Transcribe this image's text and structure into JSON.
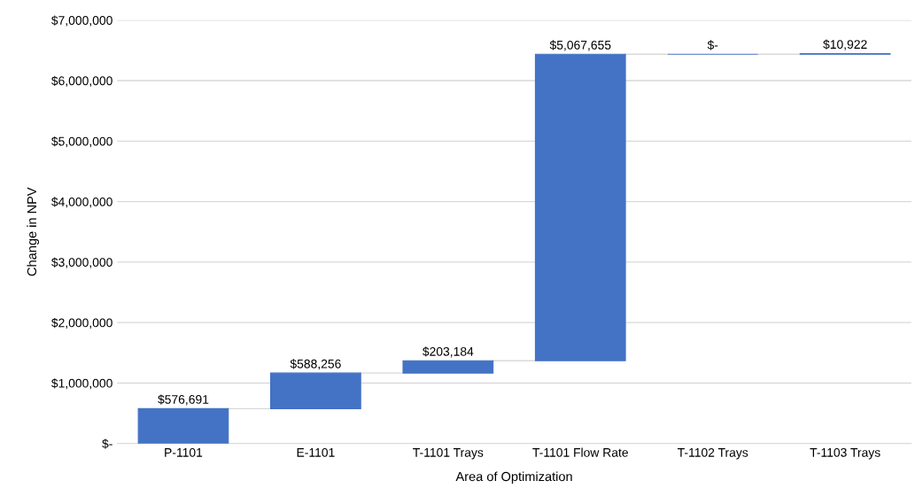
{
  "chart_data": {
    "type": "bar",
    "xlabel": "Area of Optimization",
    "ylabel": "Change in NPV",
    "categories": [
      "P-1101",
      "E-1101",
      "T-1101 Trays",
      "T-1101 Flow Rate",
      "T-1102 Trays",
      "T-1103 Trays"
    ],
    "values": [
      576691,
      588256,
      203184,
      5067655,
      0,
      10922
    ],
    "base": [
      0,
      576691,
      1164947,
      1368131,
      6435786,
      6435786
    ],
    "value_labels": [
      "$576,691",
      "$588,256",
      "$203,184",
      "$5,067,655",
      "$-",
      "$10,922"
    ],
    "color": "#4472c4",
    "ylim": [
      0,
      7000000
    ],
    "yticks": [
      {
        "value": 0,
        "label": "$-"
      },
      {
        "value": 1000000,
        "label": "$1,000,000"
      },
      {
        "value": 2000000,
        "label": "$2,000,000"
      },
      {
        "value": 3000000,
        "label": "$3,000,000"
      },
      {
        "value": 4000000,
        "label": "$4,000,000"
      },
      {
        "value": 5000000,
        "label": "$5,000,000"
      },
      {
        "value": 6000000,
        "label": "$6,000,000"
      },
      {
        "value": 7000000,
        "label": "$7,000,000"
      }
    ],
    "grid": "y",
    "legend": false
  }
}
